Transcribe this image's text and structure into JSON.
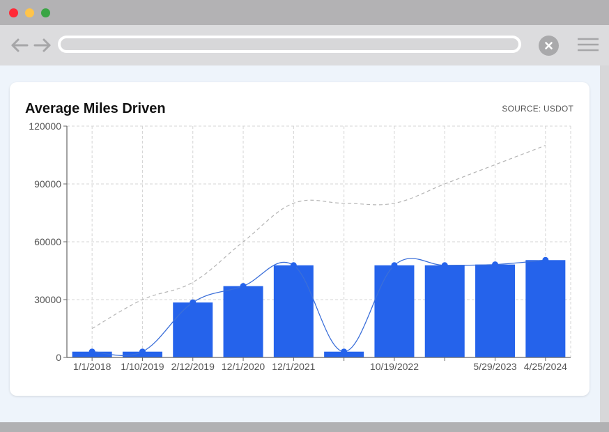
{
  "window": {
    "controls": [
      "close",
      "minimize",
      "maximize"
    ],
    "icons": [
      "back-arrow-icon",
      "forward-arrow-icon",
      "close-icon",
      "menu-icon"
    ]
  },
  "card": {
    "title": "Average Miles Driven",
    "source": "SOURCE: USDOT"
  },
  "colors": {
    "bar": "#2563eb",
    "line": "#3b6fd9",
    "dashed_line": "#b5b5b5",
    "grid": "#d4d4d4"
  },
  "chart_data": {
    "type": "bar",
    "grid": true,
    "legend": "none",
    "ylim": [
      0,
      120000
    ],
    "y_ticks": [
      "0",
      "30000",
      "60000",
      "90000",
      "120000"
    ],
    "categories": [
      "1/1/2018",
      "1/10/2019",
      "2/12/2019",
      "12/1/2020",
      "12/1/2021",
      "",
      "10/19/2022",
      "",
      "5/29/2023",
      "4/25/2024"
    ],
    "series": [
      {
        "type": "bar",
        "values": [
          3000,
          3000,
          28500,
          37000,
          47800,
          3000,
          47800,
          47800,
          48200,
          50500
        ]
      },
      {
        "type": "line",
        "values": [
          3000,
          3000,
          28500,
          37000,
          47800,
          3000,
          47800,
          47800,
          48200,
          50500
        ]
      },
      {
        "type": "line",
        "style": "dashed",
        "values": [
          15000,
          30000,
          39000,
          60000,
          80000,
          80000,
          80000,
          90000,
          100000,
          110000
        ]
      }
    ]
  }
}
